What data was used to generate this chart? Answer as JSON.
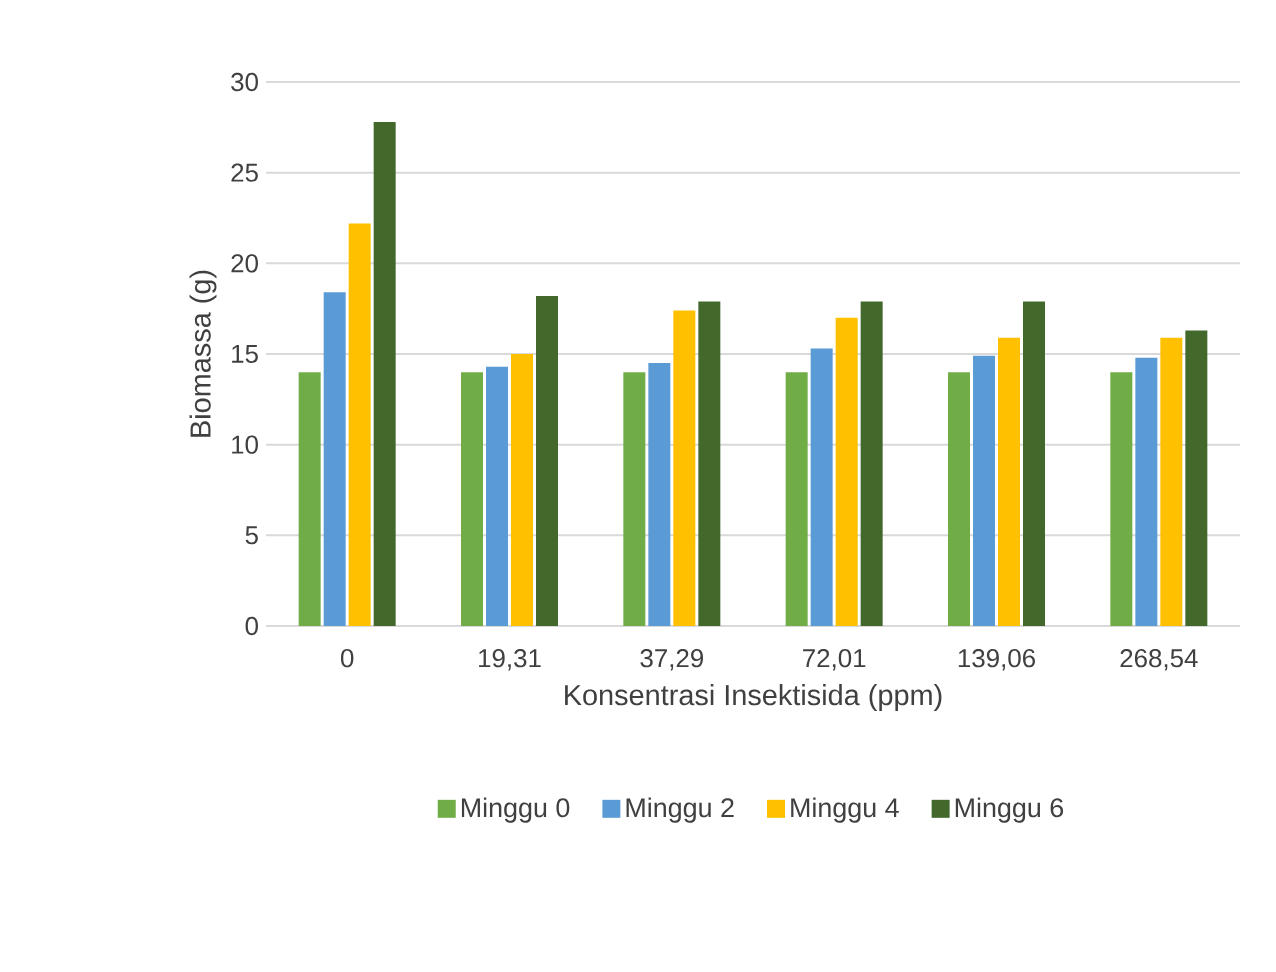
{
  "chart_data": {
    "type": "bar",
    "xlabel": "Konsentrasi Insektisida (ppm)",
    "ylabel": "Biomassa (g)",
    "categories": [
      "0",
      "19,31",
      "37,29",
      "72,01",
      "139,06",
      "268,54"
    ],
    "series": [
      {
        "name": "Minggu 0",
        "color": "#70ad47",
        "values": [
          14.0,
          14.0,
          14.0,
          14.0,
          14.0,
          14.0
        ]
      },
      {
        "name": "Minggu 2",
        "color": "#5b9bd5",
        "values": [
          18.4,
          14.3,
          14.5,
          15.3,
          14.9,
          14.8
        ]
      },
      {
        "name": "Minggu 4",
        "color": "#ffc000",
        "values": [
          22.2,
          15.0,
          17.4,
          17.0,
          15.9,
          15.9
        ]
      },
      {
        "name": "Minggu 6",
        "color": "#43682b",
        "values": [
          27.8,
          18.2,
          17.9,
          17.9,
          17.9,
          16.3
        ]
      }
    ],
    "ylim": [
      0,
      30
    ],
    "yticks": [
      0,
      5,
      10,
      15,
      20,
      25,
      30
    ],
    "grid": "y",
    "legend": "bottom"
  }
}
